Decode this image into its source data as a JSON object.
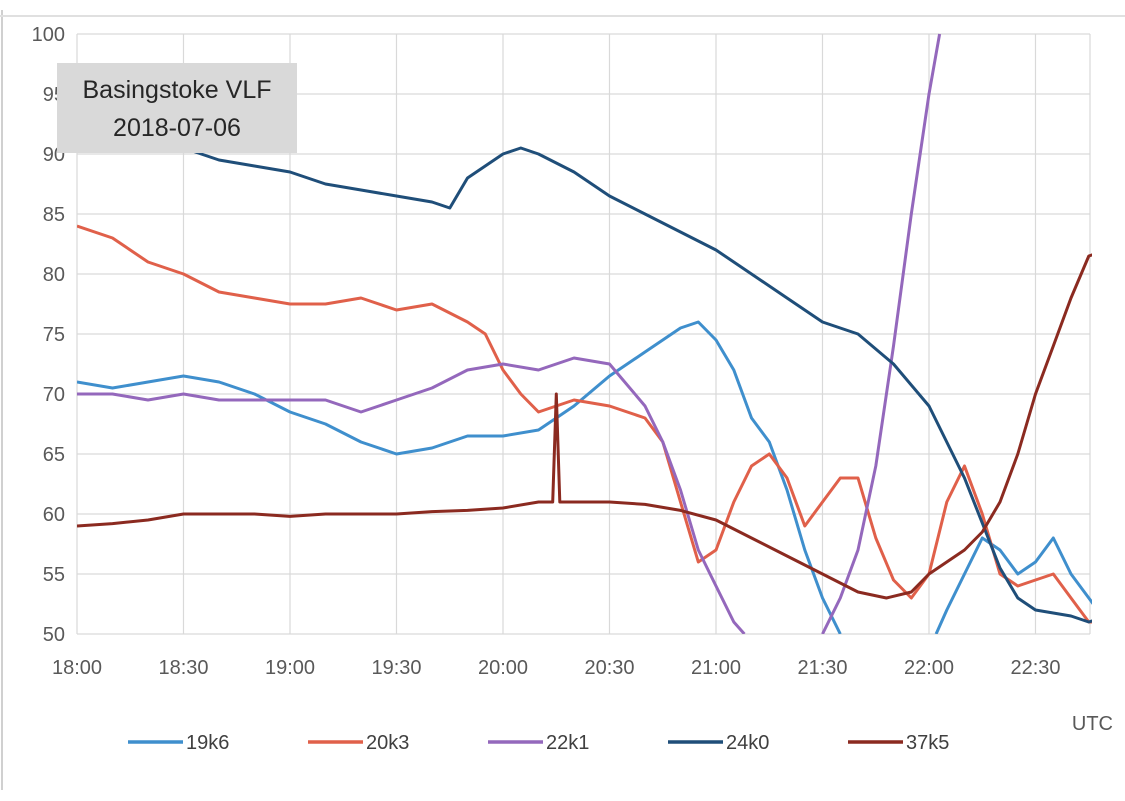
{
  "chart_data": {
    "type": "line",
    "title": [
      "Basingstoke VLF",
      "2018-07-06"
    ],
    "xlabel": "UTC",
    "ylabel": "",
    "x_ticks": [
      "18:00",
      "18:30",
      "19:00",
      "19:30",
      "20:00",
      "20:30",
      "21:00",
      "21:30",
      "22:00",
      "22:30"
    ],
    "xlim": [
      "18:00",
      "22:55"
    ],
    "ylim": [
      50,
      100
    ],
    "y_ticks": [
      50,
      55,
      60,
      65,
      70,
      75,
      80,
      85,
      90,
      95,
      100
    ],
    "grid": true,
    "legend_position": "bottom",
    "series": [
      {
        "name": "19k6",
        "color": "#3f8fcd",
        "points": [
          [
            "18:00",
            71
          ],
          [
            "18:10",
            70.5
          ],
          [
            "18:20",
            71
          ],
          [
            "18:30",
            71.5
          ],
          [
            "18:40",
            71
          ],
          [
            "18:50",
            70
          ],
          [
            "19:00",
            68.5
          ],
          [
            "19:10",
            67.5
          ],
          [
            "19:20",
            66
          ],
          [
            "19:30",
            65
          ],
          [
            "19:40",
            65.5
          ],
          [
            "19:50",
            66.5
          ],
          [
            "20:00",
            66.5
          ],
          [
            "20:10",
            67
          ],
          [
            "20:20",
            69
          ],
          [
            "20:30",
            71.5
          ],
          [
            "20:40",
            73.5
          ],
          [
            "20:50",
            75.5
          ],
          [
            "20:55",
            76
          ],
          [
            "21:00",
            74.5
          ],
          [
            "21:05",
            72
          ],
          [
            "21:10",
            68
          ],
          [
            "21:15",
            66
          ],
          [
            "21:20",
            62
          ],
          [
            "21:25",
            57
          ],
          [
            "21:30",
            53
          ],
          [
            "21:35",
            50
          ]
        ],
        "points_2": [
          [
            "22:02",
            50
          ],
          [
            "22:05",
            52
          ],
          [
            "22:10",
            55
          ],
          [
            "22:15",
            58
          ],
          [
            "22:20",
            57
          ],
          [
            "22:25",
            55
          ],
          [
            "22:30",
            56
          ],
          [
            "22:35",
            58
          ],
          [
            "22:40",
            55
          ],
          [
            "22:45",
            53
          ],
          [
            "22:50",
            51
          ],
          [
            "22:55",
            52
          ]
        ]
      },
      {
        "name": "20k3",
        "color": "#e0604a",
        "points": [
          [
            "18:00",
            84
          ],
          [
            "18:10",
            83
          ],
          [
            "18:20",
            81
          ],
          [
            "18:30",
            80
          ],
          [
            "18:40",
            78.5
          ],
          [
            "18:50",
            78
          ],
          [
            "19:00",
            77.5
          ],
          [
            "19:10",
            77.5
          ],
          [
            "19:20",
            78
          ],
          [
            "19:30",
            77
          ],
          [
            "19:40",
            77.5
          ],
          [
            "19:50",
            76
          ],
          [
            "19:55",
            75
          ],
          [
            "20:00",
            72
          ],
          [
            "20:05",
            70
          ],
          [
            "20:10",
            68.5
          ],
          [
            "20:20",
            69.5
          ],
          [
            "20:30",
            69
          ],
          [
            "20:40",
            68
          ],
          [
            "20:45",
            66
          ],
          [
            "20:50",
            61
          ],
          [
            "20:55",
            56
          ],
          [
            "21:00",
            57
          ],
          [
            "21:05",
            61
          ],
          [
            "21:10",
            64
          ],
          [
            "21:15",
            65
          ],
          [
            "21:20",
            63
          ],
          [
            "21:25",
            59
          ],
          [
            "21:30",
            61
          ],
          [
            "21:35",
            63
          ],
          [
            "21:40",
            63
          ],
          [
            "21:45",
            58
          ],
          [
            "21:50",
            54.5
          ],
          [
            "21:55",
            53
          ],
          [
            "22:00",
            55
          ],
          [
            "22:05",
            61
          ],
          [
            "22:10",
            64
          ],
          [
            "22:15",
            60
          ],
          [
            "22:20",
            55
          ],
          [
            "22:25",
            54
          ],
          [
            "22:30",
            54.5
          ],
          [
            "22:35",
            55
          ],
          [
            "22:40",
            53
          ],
          [
            "22:45",
            51
          ],
          [
            "22:50",
            51
          ],
          [
            "22:55",
            55
          ]
        ]
      },
      {
        "name": "22k1",
        "color": "#9468bc",
        "points": [
          [
            "18:00",
            70
          ],
          [
            "18:10",
            70
          ],
          [
            "18:20",
            69.5
          ],
          [
            "18:30",
            70
          ],
          [
            "18:40",
            69.5
          ],
          [
            "18:50",
            69.5
          ],
          [
            "19:00",
            69.5
          ],
          [
            "19:10",
            69.5
          ],
          [
            "19:20",
            68.5
          ],
          [
            "19:30",
            69.5
          ],
          [
            "19:40",
            70.5
          ],
          [
            "19:50",
            72
          ],
          [
            "20:00",
            72.5
          ],
          [
            "20:10",
            72
          ],
          [
            "20:20",
            73
          ],
          [
            "20:30",
            72.5
          ],
          [
            "20:40",
            69
          ],
          [
            "20:45",
            66
          ],
          [
            "20:50",
            62
          ],
          [
            "20:55",
            57
          ],
          [
            "21:00",
            54
          ],
          [
            "21:05",
            51
          ],
          [
            "21:08",
            50
          ]
        ],
        "points_2": [
          [
            "21:30",
            50
          ],
          [
            "21:35",
            53
          ],
          [
            "21:40",
            57
          ],
          [
            "21:45",
            64
          ],
          [
            "21:50",
            74
          ],
          [
            "21:55",
            85
          ],
          [
            "22:00",
            95
          ],
          [
            "22:03",
            100
          ]
        ]
      },
      {
        "name": "24k0",
        "color": "#1f4e79",
        "points": [
          [
            "18:10",
            91
          ],
          [
            "18:20",
            91
          ],
          [
            "18:30",
            90.5
          ],
          [
            "18:40",
            89.5
          ],
          [
            "18:50",
            89
          ],
          [
            "19:00",
            88.5
          ],
          [
            "19:10",
            87.5
          ],
          [
            "19:20",
            87
          ],
          [
            "19:30",
            86.5
          ],
          [
            "19:40",
            86
          ],
          [
            "19:45",
            85.5
          ],
          [
            "19:50",
            88
          ],
          [
            "20:00",
            90
          ],
          [
            "20:05",
            90.5
          ],
          [
            "20:10",
            90
          ],
          [
            "20:20",
            88.5
          ],
          [
            "20:30",
            86.5
          ],
          [
            "20:40",
            85
          ],
          [
            "20:50",
            83.5
          ],
          [
            "21:00",
            82
          ],
          [
            "21:10",
            80
          ],
          [
            "21:20",
            78
          ],
          [
            "21:30",
            76
          ],
          [
            "21:40",
            75
          ],
          [
            "21:50",
            72.5
          ],
          [
            "22:00",
            69
          ],
          [
            "22:10",
            63
          ],
          [
            "22:20",
            55.5
          ],
          [
            "22:25",
            53
          ],
          [
            "22:30",
            52
          ],
          [
            "22:40",
            51.5
          ],
          [
            "22:45",
            51
          ],
          [
            "22:50",
            51.5
          ],
          [
            "22:55",
            53
          ]
        ]
      },
      {
        "name": "37k5",
        "color": "#8b2a20",
        "points": [
          [
            "18:00",
            59
          ],
          [
            "18:10",
            59.2
          ],
          [
            "18:20",
            59.5
          ],
          [
            "18:30",
            60
          ],
          [
            "18:40",
            60
          ],
          [
            "18:50",
            60
          ],
          [
            "19:00",
            59.8
          ],
          [
            "19:10",
            60
          ],
          [
            "19:20",
            60
          ],
          [
            "19:30",
            60
          ],
          [
            "19:40",
            60.2
          ],
          [
            "19:50",
            60.3
          ],
          [
            "20:00",
            60.5
          ],
          [
            "20:10",
            61
          ],
          [
            "20:14",
            61
          ],
          [
            "20:15",
            70
          ],
          [
            "20:16",
            61
          ],
          [
            "20:20",
            61
          ],
          [
            "20:30",
            61
          ],
          [
            "20:40",
            60.8
          ],
          [
            "20:50",
            60.3
          ],
          [
            "21:00",
            59.5
          ],
          [
            "21:10",
            58
          ],
          [
            "21:20",
            56.5
          ],
          [
            "21:30",
            55
          ],
          [
            "21:40",
            53.5
          ],
          [
            "21:48",
            53
          ],
          [
            "21:55",
            53.5
          ],
          [
            "22:00",
            55
          ],
          [
            "22:10",
            57
          ],
          [
            "22:15",
            58.5
          ],
          [
            "22:20",
            61
          ],
          [
            "22:25",
            65
          ],
          [
            "22:30",
            70
          ],
          [
            "22:35",
            74
          ],
          [
            "22:40",
            78
          ],
          [
            "22:45",
            81.5
          ],
          [
            "22:50",
            82
          ],
          [
            "22:55",
            82
          ]
        ]
      }
    ]
  }
}
